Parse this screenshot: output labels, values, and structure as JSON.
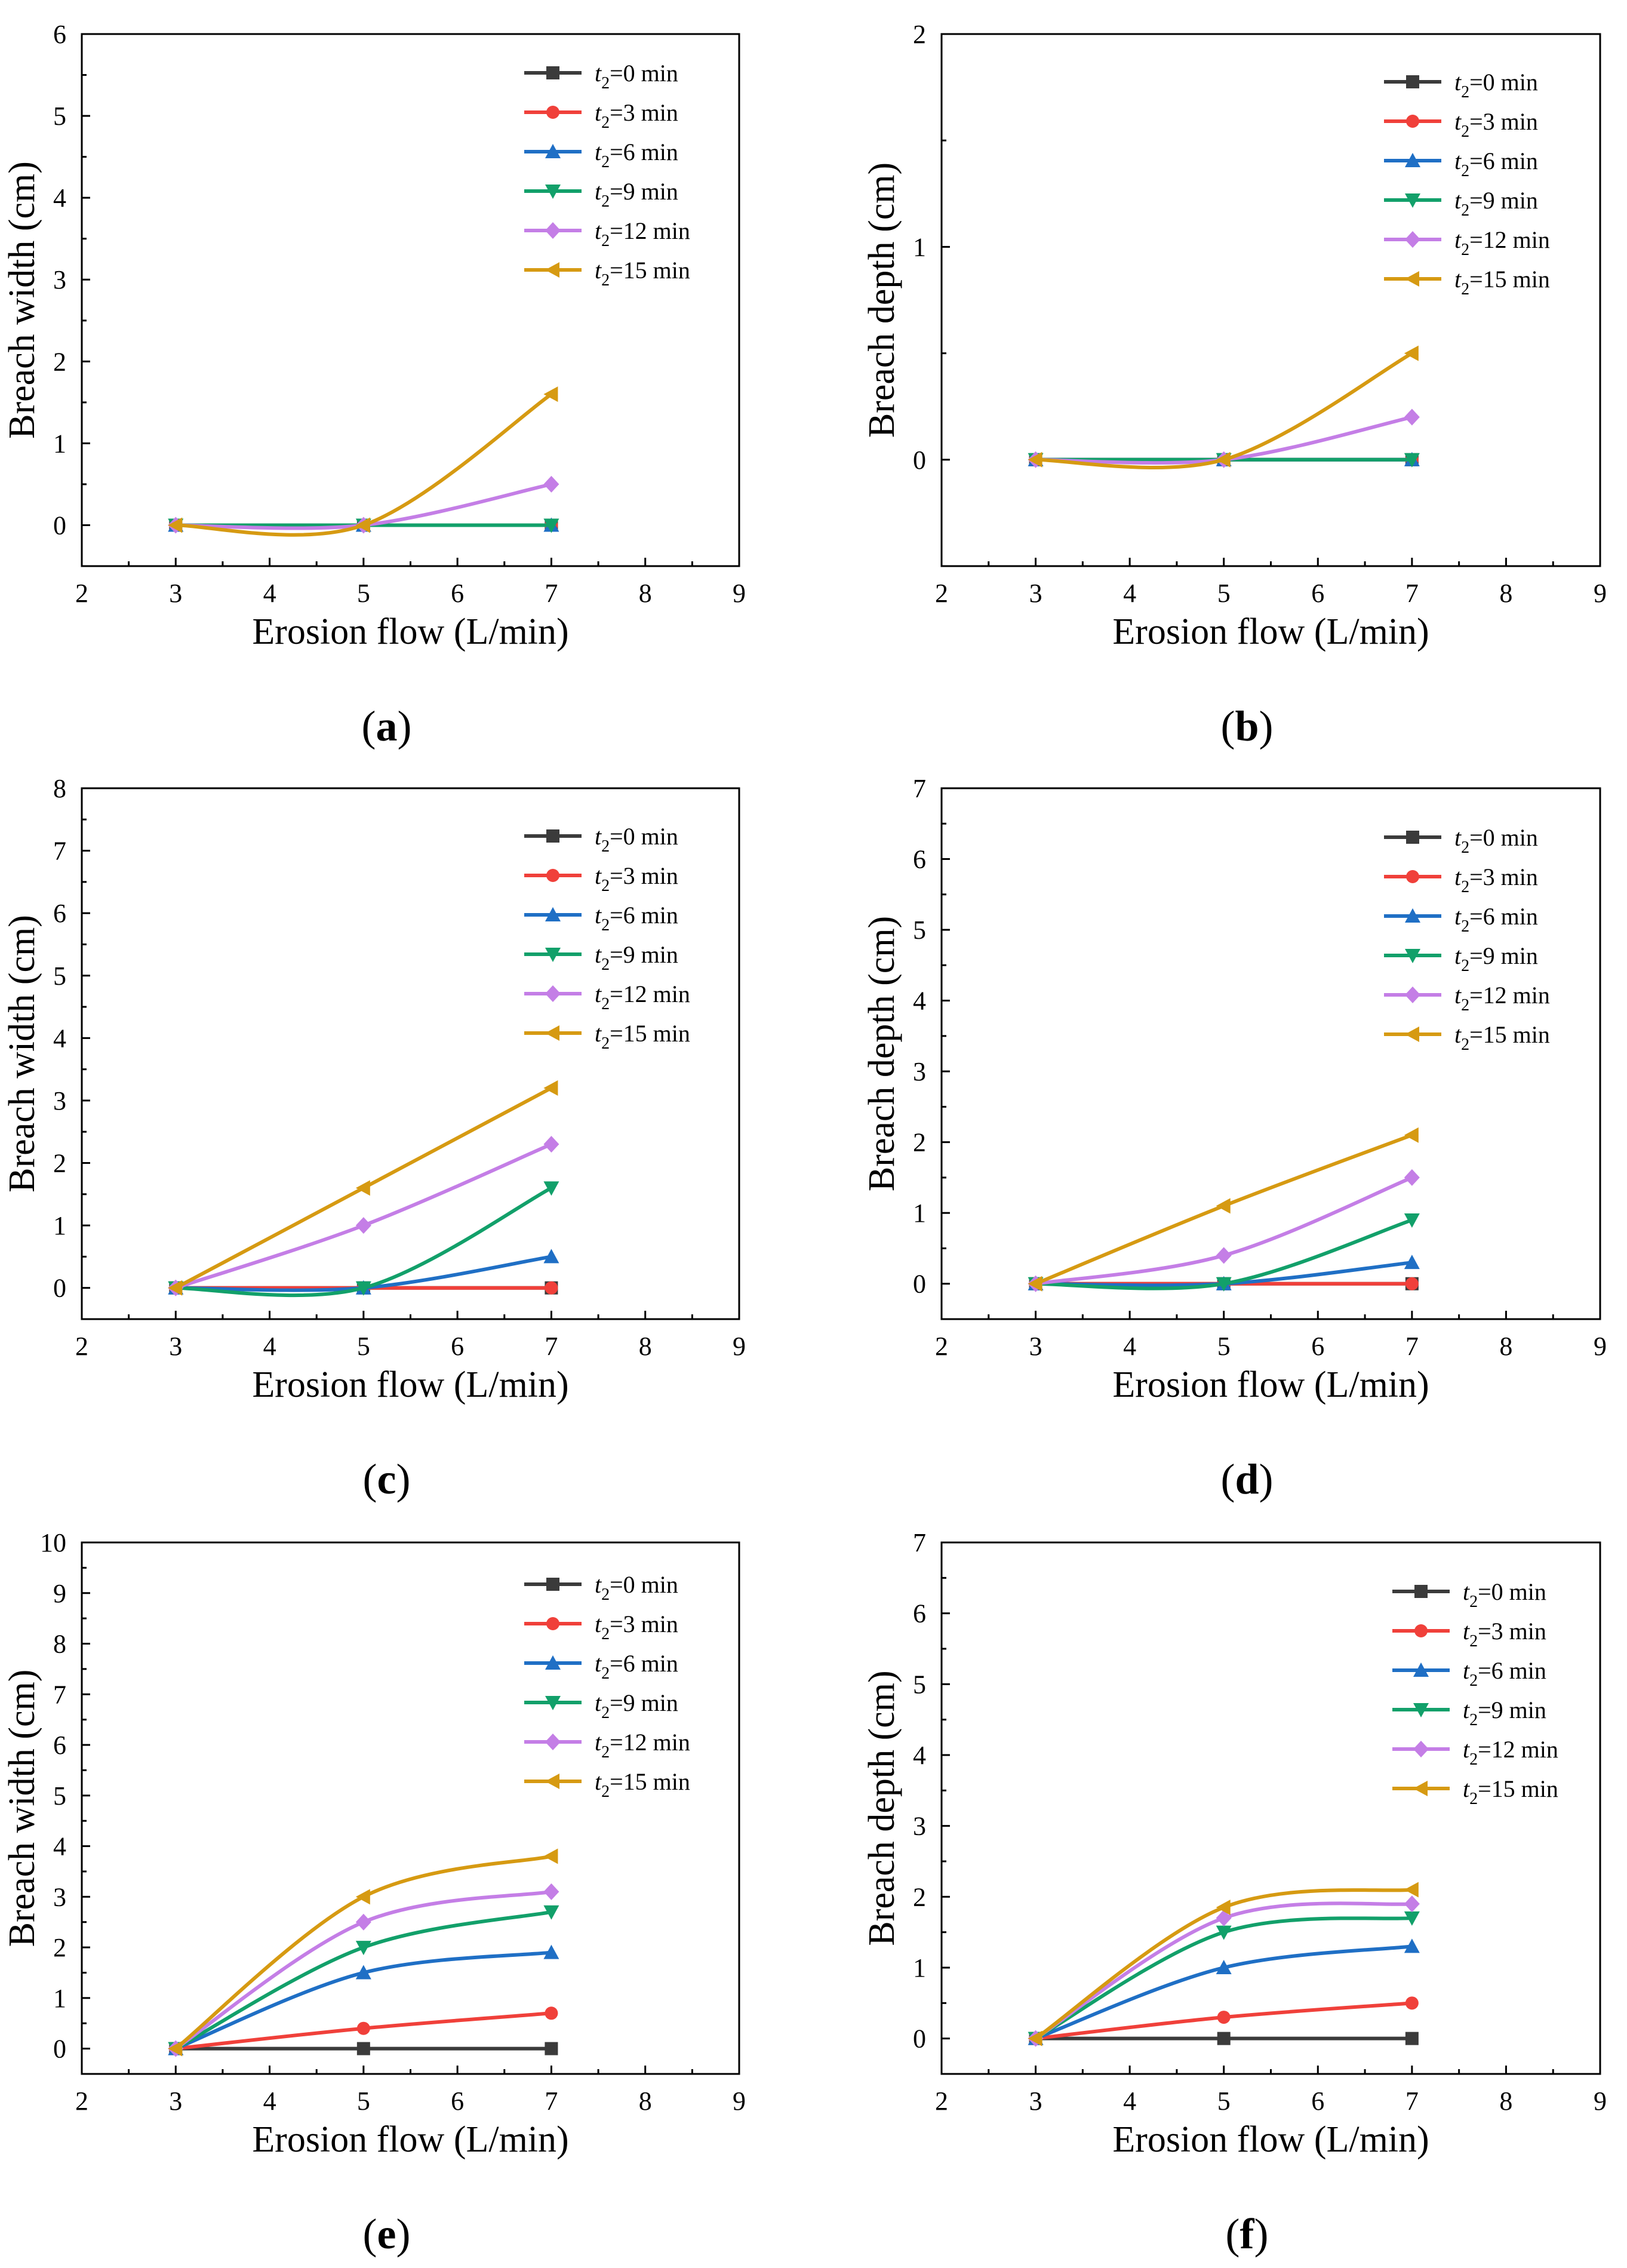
{
  "figure": {
    "legend_prefix": "t",
    "legend_subscript": "2",
    "series_names": [
      "=0 min",
      "=3 min",
      "=6 min",
      "=9 min",
      "=12 min",
      "=15 min"
    ],
    "series_colors": [
      "#3b3b3b",
      "#f0403a",
      "#1f6fc5",
      "#12a06a",
      "#c47ee6",
      "#d69a12"
    ],
    "series_markers": [
      "square",
      "circle",
      "triangle-up",
      "triangle-down",
      "diamond",
      "triangle-left"
    ]
  },
  "chart_data": [
    {
      "type": "line",
      "panel": "a",
      "caption": "(a)",
      "caption_letter": "a",
      "xlabel": "Erosion flow (L/min)",
      "ylabel": "Breach width (cm)",
      "xlim": [
        2,
        9
      ],
      "ylim": [
        -0.5,
        6
      ],
      "xticks": [
        2,
        3,
        4,
        5,
        6,
        7,
        8,
        9
      ],
      "yticks": [
        0,
        1,
        2,
        3,
        4,
        5,
        6
      ],
      "x": [
        3,
        5,
        7
      ],
      "series": [
        {
          "name": "t2=0 min",
          "values": [
            0,
            0,
            0
          ]
        },
        {
          "name": "t2=3 min",
          "values": [
            0,
            0,
            0
          ]
        },
        {
          "name": "t2=6 min",
          "values": [
            0,
            0,
            0
          ]
        },
        {
          "name": "t2=9 min",
          "values": [
            0,
            0,
            0
          ]
        },
        {
          "name": "t2=12 min",
          "values": [
            0,
            0,
            0.5
          ]
        },
        {
          "name": "t2=15 min",
          "values": [
            0,
            0,
            1.6
          ]
        }
      ]
    },
    {
      "type": "line",
      "panel": "b",
      "caption": "(b)",
      "caption_letter": "b",
      "xlabel": "Erosion flow (L/min)",
      "ylabel": "Breach depth (cm)",
      "xlim": [
        2,
        9
      ],
      "ylim": [
        -0.5,
        2
      ],
      "xticks": [
        2,
        3,
        4,
        5,
        6,
        7,
        8,
        9
      ],
      "yticks": [
        0,
        1,
        2
      ],
      "x": [
        3,
        5,
        7
      ],
      "series": [
        {
          "name": "t2=0 min",
          "values": [
            0,
            0,
            0
          ]
        },
        {
          "name": "t2=3 min",
          "values": [
            0,
            0,
            0
          ]
        },
        {
          "name": "t2=6 min",
          "values": [
            0,
            0,
            0
          ]
        },
        {
          "name": "t2=9 min",
          "values": [
            0,
            0,
            0
          ]
        },
        {
          "name": "t2=12 min",
          "values": [
            0,
            0,
            0.2
          ]
        },
        {
          "name": "t2=15 min",
          "values": [
            0,
            0,
            0.5
          ]
        }
      ]
    },
    {
      "type": "line",
      "panel": "c",
      "caption": "(c)",
      "caption_letter": "c",
      "xlabel": "Erosion flow (L/min)",
      "ylabel": "Breach width (cm)",
      "xlim": [
        2,
        9
      ],
      "ylim": [
        -0.5,
        8
      ],
      "xticks": [
        2,
        3,
        4,
        5,
        6,
        7,
        8,
        9
      ],
      "yticks": [
        0,
        1,
        2,
        3,
        4,
        5,
        6,
        7,
        8
      ],
      "x": [
        3,
        5,
        7
      ],
      "series": [
        {
          "name": "t2=0 min",
          "values": [
            0,
            0,
            0
          ]
        },
        {
          "name": "t2=3 min",
          "values": [
            0,
            0,
            0
          ]
        },
        {
          "name": "t2=6 min",
          "values": [
            0,
            0,
            0.5
          ]
        },
        {
          "name": "t2=9 min",
          "values": [
            0,
            0,
            1.6
          ]
        },
        {
          "name": "t2=12 min",
          "values": [
            0,
            1.0,
            2.3
          ]
        },
        {
          "name": "t2=15 min",
          "values": [
            0,
            1.6,
            3.2
          ]
        }
      ]
    },
    {
      "type": "line",
      "panel": "d",
      "caption": "(d)",
      "caption_letter": "d",
      "xlabel": "Erosion flow (L/min)",
      "ylabel": "Breach depth (cm)",
      "xlim": [
        2,
        9
      ],
      "ylim": [
        -0.5,
        7
      ],
      "xticks": [
        2,
        3,
        4,
        5,
        6,
        7,
        8,
        9
      ],
      "yticks": [
        0,
        1,
        2,
        3,
        4,
        5,
        6,
        7
      ],
      "x": [
        3,
        5,
        7
      ],
      "series": [
        {
          "name": "t2=0 min",
          "values": [
            0,
            0,
            0
          ]
        },
        {
          "name": "t2=3 min",
          "values": [
            0,
            0,
            0
          ]
        },
        {
          "name": "t2=6 min",
          "values": [
            0,
            0,
            0.3
          ]
        },
        {
          "name": "t2=9 min",
          "values": [
            0,
            0,
            0.9
          ]
        },
        {
          "name": "t2=12 min",
          "values": [
            0,
            0.4,
            1.5
          ]
        },
        {
          "name": "t2=15 min",
          "values": [
            0,
            1.1,
            2.1
          ]
        }
      ]
    },
    {
      "type": "line",
      "panel": "e",
      "caption": "(e)",
      "caption_letter": "e",
      "xlabel": "Erosion flow (L/min)",
      "ylabel": "Breach width (cm)",
      "xlim": [
        2,
        9
      ],
      "ylim": [
        -0.5,
        10
      ],
      "xticks": [
        2,
        3,
        4,
        5,
        6,
        7,
        8,
        9
      ],
      "yticks": [
        0,
        1,
        2,
        3,
        4,
        5,
        6,
        7,
        8,
        9,
        10
      ],
      "x": [
        3,
        5,
        7
      ],
      "series": [
        {
          "name": "t2=0 min",
          "values": [
            0,
            0,
            0
          ]
        },
        {
          "name": "t2=3 min",
          "values": [
            0,
            0.4,
            0.7
          ]
        },
        {
          "name": "t2=6 min",
          "values": [
            0,
            1.5,
            1.9
          ]
        },
        {
          "name": "t2=9 min",
          "values": [
            0,
            2.0,
            2.7
          ]
        },
        {
          "name": "t2=12 min",
          "values": [
            0,
            2.5,
            3.1
          ]
        },
        {
          "name": "t2=15 min",
          "values": [
            0,
            3.0,
            3.8
          ]
        }
      ]
    },
    {
      "type": "line",
      "panel": "f",
      "caption": "(f)",
      "caption_letter": "f",
      "xlabel": "Erosion flow (L/min)",
      "ylabel": "Breach depth (cm)",
      "xlim": [
        2,
        9
      ],
      "ylim": [
        -0.5,
        7
      ],
      "xticks": [
        2,
        3,
        4,
        5,
        6,
        7,
        8,
        9
      ],
      "yticks": [
        0,
        1,
        2,
        3,
        4,
        5,
        6,
        7
      ],
      "x": [
        3,
        5,
        7
      ],
      "series": [
        {
          "name": "t2=0 min",
          "values": [
            0,
            0,
            0
          ]
        },
        {
          "name": "t2=3 min",
          "values": [
            0,
            0.3,
            0.5
          ]
        },
        {
          "name": "t2=6 min",
          "values": [
            0,
            1.0,
            1.3
          ]
        },
        {
          "name": "t2=9 min",
          "values": [
            0,
            1.5,
            1.7
          ]
        },
        {
          "name": "t2=12 min",
          "values": [
            0,
            1.7,
            1.9
          ]
        },
        {
          "name": "t2=15 min",
          "values": [
            0,
            1.85,
            2.1
          ]
        }
      ]
    }
  ]
}
